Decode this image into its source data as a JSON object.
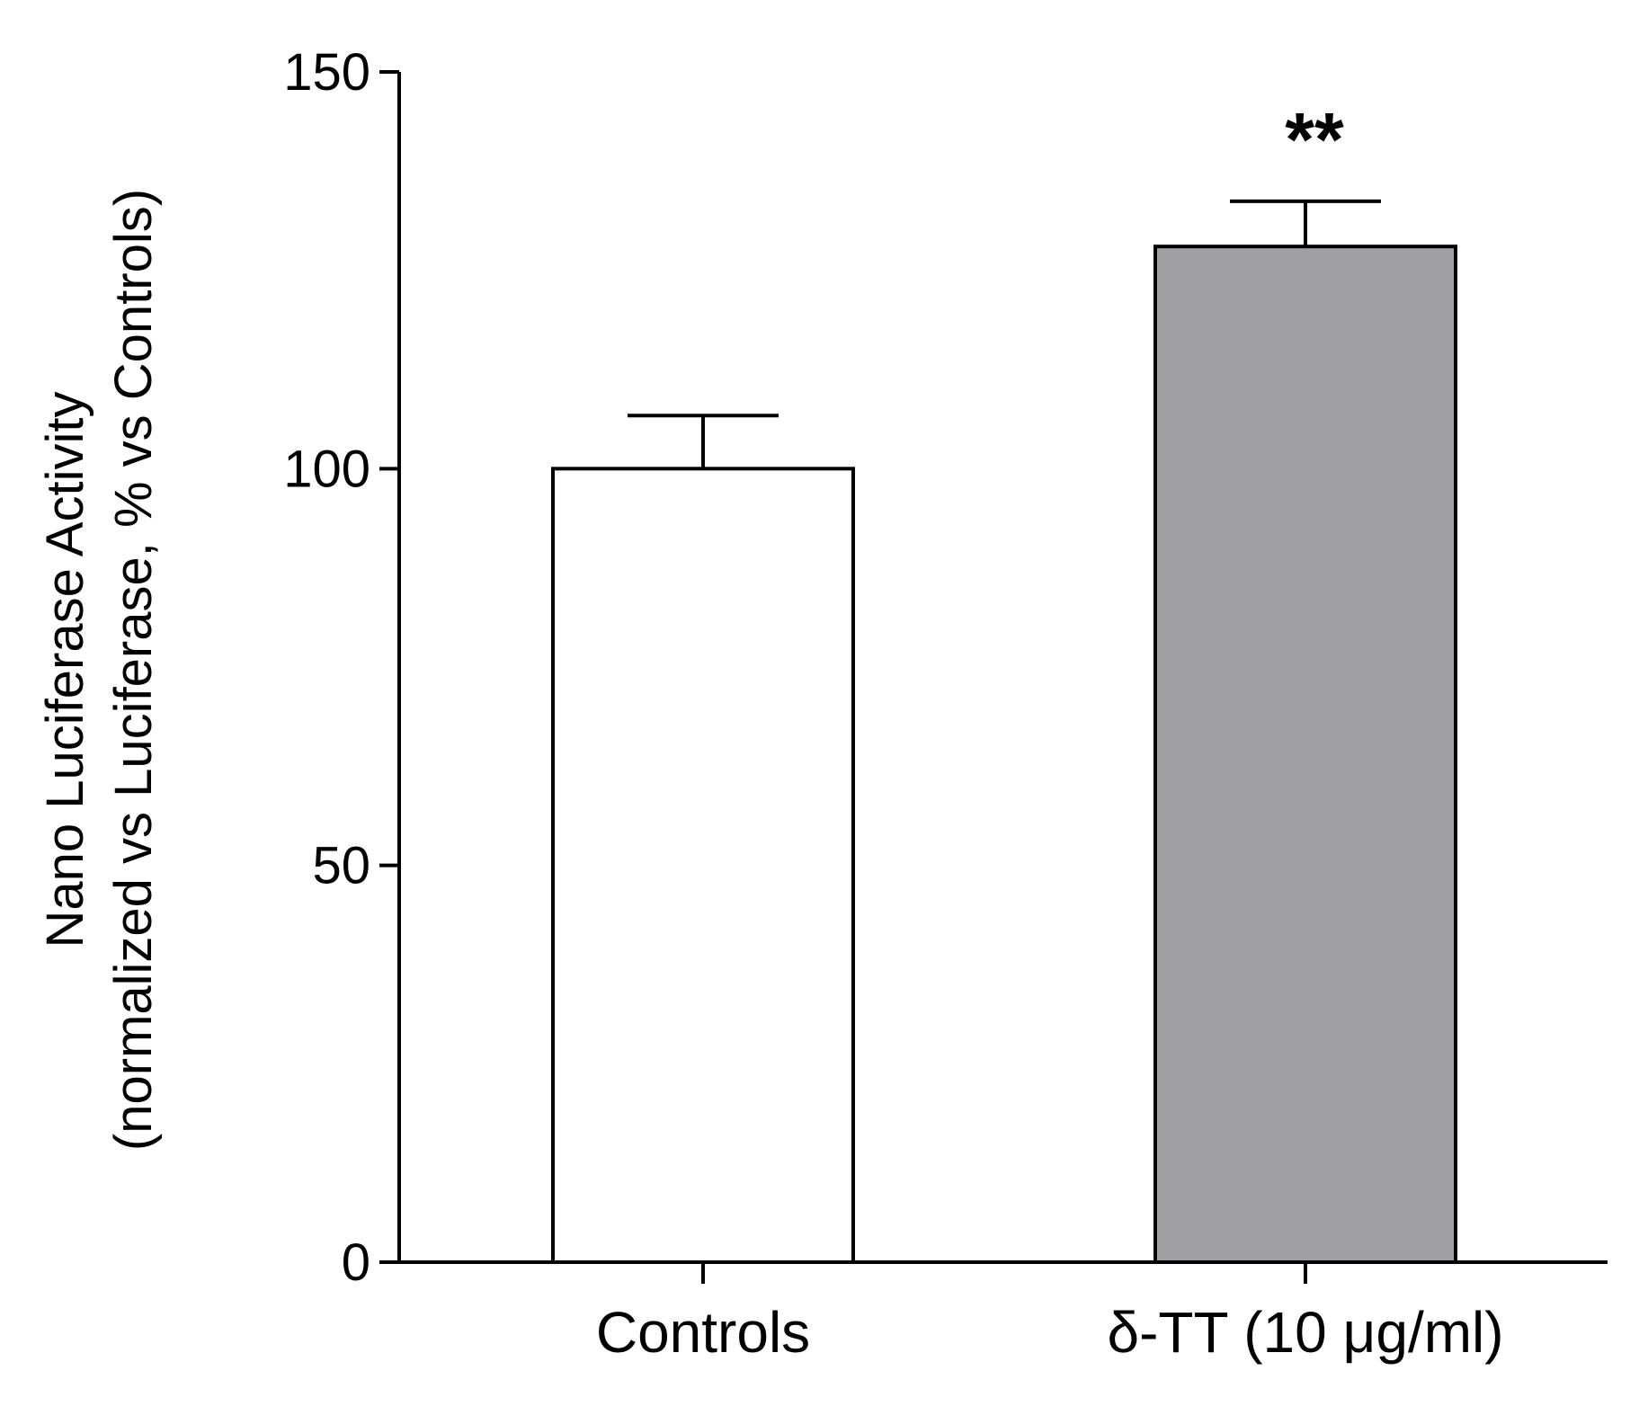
{
  "chart_data": {
    "type": "bar",
    "title": "",
    "xlabel": "",
    "ylabel_line1": "Nano Luciferase Activity",
    "ylabel_line2": "(normalized vs Luciferase, % vs Controls)",
    "categories": [
      "Controls",
      "δ-TT  (10 μg/ml)"
    ],
    "values": [
      100,
      128
    ],
    "errors": [
      6.7,
      5.7
    ],
    "significance": [
      "",
      "**"
    ],
    "ylim": [
      0,
      150
    ],
    "yticks": [
      0,
      50,
      100,
      150
    ],
    "grid": false,
    "colors": {
      "bar_fill": [
        "#ffffff",
        "#a0a0a4"
      ],
      "stroke": "#000000"
    }
  }
}
